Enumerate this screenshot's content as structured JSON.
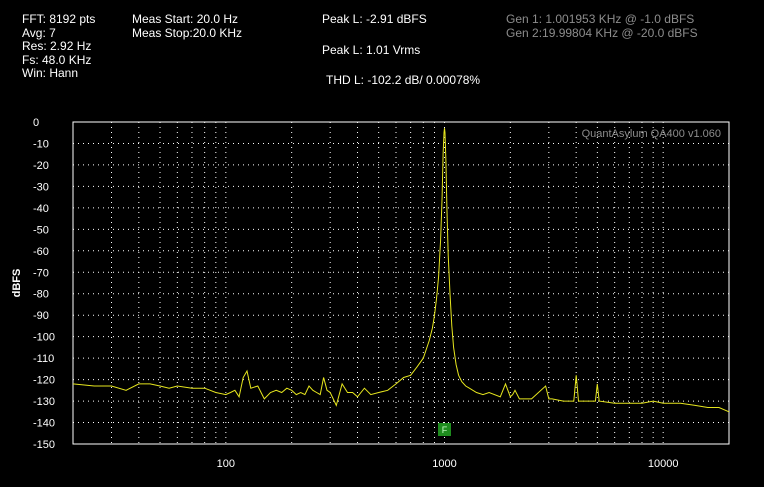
{
  "header": {
    "col1": [
      "FFT: 8192 pts",
      "Avg: 7",
      "Res: 2.92 Hz",
      "Fs: 48.0 KHz",
      "Win: Hann"
    ],
    "col2": [
      "Meas Start: 20.0 Hz",
      "Meas Stop:20.0 KHz"
    ],
    "col3_peak_dbfs": "Peak L: -2.91 dBFS",
    "col3_peak_vrms": "Peak L: 1.01 Vrms",
    "col3_thd": "THD L: -102.2 dB/ 0.00078%",
    "gen1": "Gen 1: 1.001953 KHz @ -1.0  dBFS",
    "gen2": "Gen 2:19.99804 KHz @ -20.0  dBFS"
  },
  "colors": {
    "background": "#000000",
    "trace": "#e6e61e",
    "grid": "#ffffff",
    "marker": "#1e8c1e",
    "watermark": "#8c8c8c"
  },
  "chart_data": {
    "type": "line",
    "xscale": "log",
    "xlim": [
      20,
      20000
    ],
    "ylim": [
      -150,
      0
    ],
    "ylabel": "dBFS",
    "xlabel": "",
    "grid": true,
    "x_ticks": [
      100,
      1000,
      10000
    ],
    "x_tick_labels": [
      "100",
      "1000",
      "10000"
    ],
    "y_ticks": [
      0,
      -10,
      -20,
      -30,
      -40,
      -50,
      -60,
      -70,
      -80,
      -90,
      -100,
      -110,
      -120,
      -130,
      -140,
      -150
    ],
    "y_tick_labels": [
      "0",
      "-10",
      "-20",
      "-30",
      "-40",
      "-50",
      "-60",
      "-70",
      "-80",
      "-90",
      "-100",
      "-110",
      "-120",
      "-130",
      "-140",
      "-150"
    ],
    "watermark": "QuantAsylum QA400 v1.060",
    "marker": {
      "label": "F",
      "x": 1000
    },
    "series": [
      {
        "x": [
          20,
          25,
          30,
          35,
          40,
          45,
          50,
          55,
          60,
          70,
          80,
          90,
          100,
          105,
          110,
          115,
          120,
          125,
          130,
          140,
          150,
          160,
          170,
          180,
          190,
          200,
          210,
          220,
          230,
          240,
          250,
          260,
          270,
          280,
          290,
          300,
          320,
          340,
          360,
          380,
          400,
          430,
          460,
          500,
          550,
          600,
          650,
          700,
          750,
          800,
          850,
          880,
          900,
          920,
          940,
          960,
          975,
          985,
          995,
          1000,
          1005,
          1015,
          1025,
          1040,
          1060,
          1080,
          1100,
          1130,
          1160,
          1200,
          1250,
          1300,
          1400,
          1500,
          1600,
          1800,
          1900,
          2000,
          2050,
          2100,
          2200,
          2500,
          2900,
          3000,
          3100,
          3500,
          3900,
          4000,
          4100,
          4500,
          4900,
          5000,
          5100,
          6000,
          7000,
          8000,
          9000,
          10000,
          12000,
          14000,
          16000,
          18000,
          20000
        ],
        "y": [
          -122,
          -123,
          -123,
          -125,
          -122,
          -122,
          -123,
          -124,
          -123,
          -124,
          -124,
          -126,
          -127,
          -126,
          -125,
          -128,
          -119,
          -116,
          -124,
          -123,
          -129,
          -126,
          -125,
          -126,
          -124,
          -125,
          -127,
          -126,
          -127,
          -123,
          -125,
          -126,
          -127,
          -119,
          -125,
          -126,
          -132,
          -122,
          -126,
          -126,
          -128,
          -124,
          -127,
          -126,
          -125,
          -122,
          -119,
          -118,
          -114,
          -110,
          -102,
          -96,
          -90,
          -82,
          -72,
          -55,
          -35,
          -15,
          -5,
          -2.9,
          -5,
          -18,
          -40,
          -62,
          -80,
          -95,
          -105,
          -113,
          -118,
          -121,
          -123,
          -124,
          -126,
          -127,
          -126,
          -128,
          -122,
          -128,
          -127,
          -125,
          -129,
          -129,
          -123,
          -129,
          -129,
          -130,
          -130,
          -118,
          -130,
          -130,
          -130,
          -122,
          -130,
          -131,
          -131,
          -131,
          -130,
          -131,
          -131,
          -132,
          -133,
          -133,
          -135
        ]
      }
    ]
  }
}
